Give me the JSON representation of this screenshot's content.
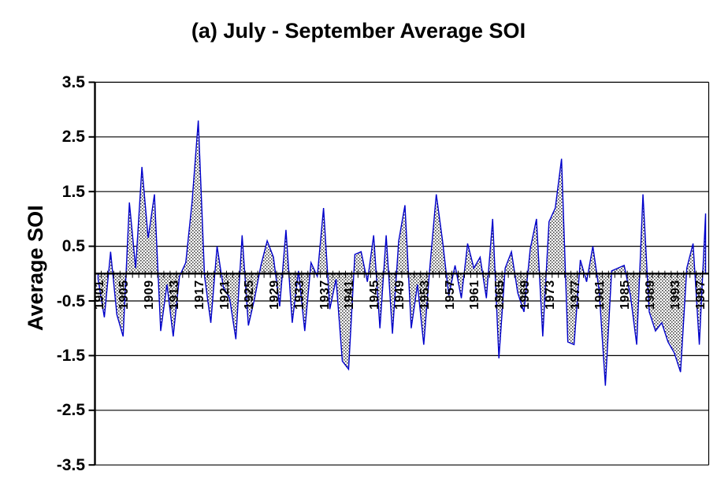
{
  "title": "(a) July - September Average SOI",
  "y_axis": {
    "label": "Average SOI",
    "tick_labels": [
      "3.5",
      "2.5",
      "1.5",
      "0.5",
      "-0.5",
      "-1.5",
      "-2.5",
      "-3.5"
    ],
    "min": -3.5,
    "max": 3.5
  },
  "x_axis": {
    "tick_labels": [
      "1901",
      "1905",
      "1909",
      "1913",
      "1917",
      "1921",
      "1925",
      "1929",
      "1933",
      "1937",
      "1941",
      "1945",
      "1949",
      "1953",
      "1957",
      "1961",
      "1965",
      "1969",
      "1973",
      "1977",
      "1981",
      "1985",
      "1989",
      "1993",
      "1997"
    ],
    "label_interval": 4
  },
  "colors": {
    "line": "#0000cc",
    "fill_dot": "#3f3f3f",
    "axis": "#000000",
    "background": "#ffffff"
  },
  "chart_data": {
    "type": "area",
    "title": "(a) July - September Average SOI",
    "xlabel": "",
    "ylabel": "Average SOI",
    "ylim": [
      -3.5,
      3.5
    ],
    "ytick_step": 1.0,
    "baseline": 0,
    "grid": "horizontal",
    "legend": "none",
    "fill_style": "stipple",
    "years": [
      1901,
      1902,
      1903,
      1904,
      1905,
      1906,
      1907,
      1908,
      1909,
      1910,
      1911,
      1912,
      1913,
      1914,
      1915,
      1916,
      1917,
      1918,
      1919,
      1920,
      1921,
      1922,
      1923,
      1924,
      1925,
      1926,
      1927,
      1928,
      1929,
      1930,
      1931,
      1932,
      1933,
      1934,
      1935,
      1936,
      1937,
      1938,
      1939,
      1940,
      1941,
      1942,
      1943,
      1944,
      1945,
      1946,
      1947,
      1948,
      1949,
      1950,
      1951,
      1952,
      1953,
      1954,
      1955,
      1956,
      1957,
      1958,
      1959,
      1960,
      1961,
      1962,
      1963,
      1964,
      1965,
      1966,
      1967,
      1968,
      1969,
      1970,
      1971,
      1972,
      1973,
      1974,
      1975,
      1976,
      1977,
      1978,
      1979,
      1980,
      1981,
      1982,
      1983,
      1984,
      1985,
      1986,
      1987,
      1988,
      1989,
      1990,
      1991,
      1992,
      1993,
      1994,
      1995,
      1996,
      1997,
      1998
    ],
    "values": [
      -0.1,
      -0.8,
      0.4,
      -0.75,
      -1.15,
      1.3,
      0.1,
      1.95,
      0.65,
      1.45,
      -1.05,
      -0.2,
      -1.15,
      -0.05,
      0.2,
      1.3,
      2.8,
      -0.05,
      -0.9,
      0.5,
      -0.25,
      -0.45,
      -1.2,
      0.7,
      -0.95,
      -0.45,
      0.15,
      0.6,
      0.3,
      -0.6,
      0.8,
      -0.9,
      0.05,
      -1.05,
      0.2,
      -0.05,
      1.2,
      -0.65,
      -0.1,
      -1.6,
      -1.75,
      0.35,
      0.4,
      -0.15,
      0.7,
      -1.0,
      0.7,
      -1.1,
      0.6,
      1.25,
      -1.0,
      -0.2,
      -1.3,
      0.15,
      1.45,
      0.6,
      -0.4,
      0.15,
      -0.45,
      0.55,
      0.1,
      0.3,
      -0.45,
      1.0,
      -1.55,
      0.1,
      0.4,
      -0.35,
      -0.7,
      0.45,
      1.0,
      -1.15,
      0.95,
      1.2,
      2.1,
      -1.25,
      -1.3,
      0.25,
      -0.15,
      0.5,
      -0.3,
      -2.05,
      0.05,
      0.1,
      0.15,
      -0.4,
      -1.3,
      1.45,
      -0.7,
      -1.05,
      -0.9,
      -1.25,
      -1.45,
      -1.8,
      0.1,
      0.55,
      -1.3,
      1.1
    ]
  }
}
